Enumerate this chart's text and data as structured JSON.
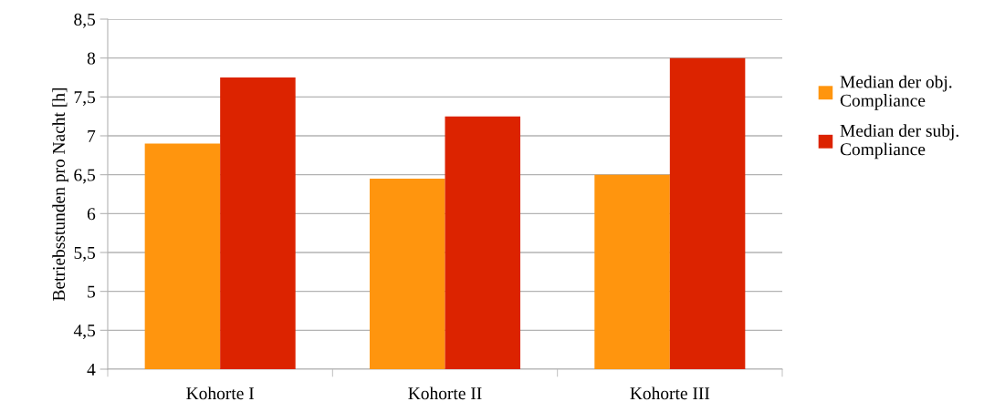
{
  "chart_data": {
    "type": "bar",
    "ylabel": "Betriebsstunden pro Nacht [h]",
    "categories": [
      "Kohorte I",
      "Kohorte II",
      "Kohorte III"
    ],
    "series": [
      {
        "name": "Median der obj.\nCompliance",
        "color": "#ff950e",
        "values": [
          6.9,
          6.45,
          6.5
        ]
      },
      {
        "name": "Median der subj.\nCompliance",
        "color": "#dc2300",
        "values": [
          7.75,
          7.25,
          8.0
        ]
      }
    ],
    "ylim": [
      4,
      8.5
    ],
    "yticks": [
      4,
      {
        "value": 4.5,
        "label": "4,5"
      },
      5,
      {
        "value": 5.5,
        "label": "5,5"
      },
      6,
      {
        "value": 6.5,
        "label": "6,5"
      },
      7,
      {
        "value": 7.5,
        "label": "7,5"
      },
      8,
      {
        "value": 8.5,
        "label": "8,5"
      }
    ],
    "grid": "y",
    "legend": "right"
  }
}
